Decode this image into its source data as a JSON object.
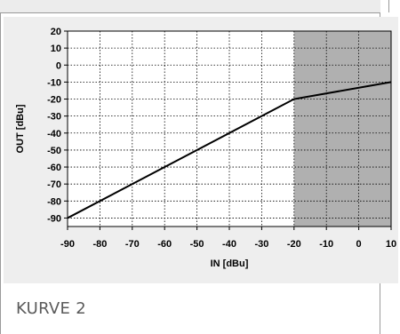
{
  "caption": "KURVE 2",
  "chart_data": {
    "type": "line",
    "title": "",
    "xlabel": "IN [dBu]",
    "ylabel": "OUT [dBu]",
    "xlim": [
      -90,
      10
    ],
    "ylim": [
      -95,
      20
    ],
    "x_ticks": [
      -90,
      -80,
      -70,
      -60,
      -50,
      -40,
      -30,
      -20,
      -10,
      0,
      10
    ],
    "y_ticks": [
      20,
      10,
      0,
      -10,
      -20,
      -30,
      -40,
      -50,
      -60,
      -70,
      -80,
      -90
    ],
    "grid": true,
    "series": [
      {
        "x": [
          -90,
          -20,
          10
        ],
        "y": [
          -90,
          -20,
          -10
        ]
      }
    ],
    "shaded_region": {
      "x": [
        -20,
        10
      ],
      "color": "#b0b0b0"
    },
    "colors": {
      "line": "#000000",
      "shade": "#b0b0b0",
      "plot_bg": "#ffffff",
      "panel_bg": "#eeeeee"
    }
  }
}
